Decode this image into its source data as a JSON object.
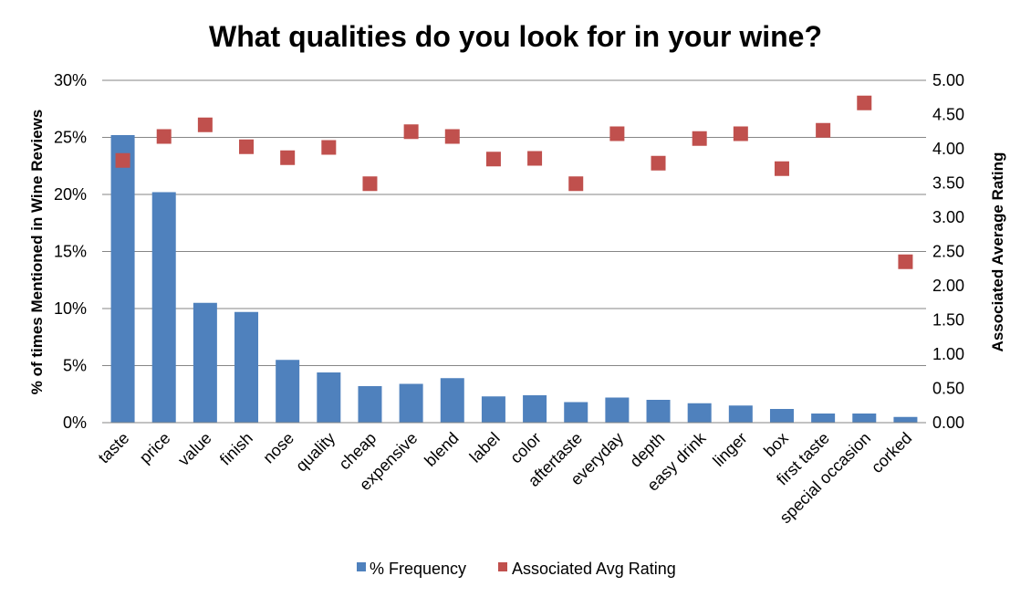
{
  "chart_data": {
    "type": "bar",
    "title": "What qualities do you look for in your wine?",
    "categories": [
      "taste",
      "price",
      "value",
      "finish",
      "nose",
      "quality",
      "cheap",
      "expensive",
      "blend",
      "label",
      "color",
      "aftertaste",
      "everyday",
      "depth",
      "easy drink",
      "linger",
      "box",
      "first taste",
      "special occasion",
      "corked"
    ],
    "series": [
      {
        "name": "% Frequency",
        "type": "bar",
        "axis": "left",
        "color": "#4F81BD",
        "values": [
          25.2,
          20.2,
          10.5,
          9.7,
          5.5,
          4.4,
          3.2,
          3.4,
          3.9,
          2.3,
          2.4,
          1.8,
          2.2,
          2.0,
          1.7,
          1.5,
          1.2,
          0.8,
          0.8,
          0.5
        ]
      },
      {
        "name": "Associated Avg Rating",
        "type": "scatter",
        "axis": "right",
        "color": "#C0504D",
        "values": [
          3.83,
          4.18,
          4.35,
          4.03,
          3.87,
          4.02,
          3.49,
          4.25,
          4.18,
          3.85,
          3.86,
          3.49,
          4.22,
          3.79,
          4.15,
          4.22,
          3.71,
          4.27,
          4.67,
          2.35
        ]
      }
    ],
    "ylabel": "% of times Mentioned in Wine Reviews",
    "y2label": "Associated Average Rating",
    "ylim": [
      0,
      30
    ],
    "y2lim": [
      0,
      5
    ],
    "yticks": [
      "0%",
      "5%",
      "10%",
      "15%",
      "20%",
      "25%",
      "30%"
    ],
    "y2ticks": [
      "0.00",
      "0.50",
      "1.00",
      "1.50",
      "2.00",
      "2.50",
      "3.00",
      "3.50",
      "4.00",
      "4.50",
      "5.00"
    ],
    "grid": true,
    "legend_position": "bottom"
  }
}
